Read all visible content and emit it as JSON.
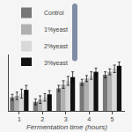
{
  "chart_data": {
    "type": "bar",
    "x_label": "Fermentation time (hours)",
    "x": [
      1,
      2,
      3,
      4,
      5
    ],
    "xlim": [
      0.55,
      5.55
    ],
    "xticks": [
      1,
      2,
      3,
      4,
      5
    ],
    "ylim": [
      0.2,
      0.95
    ],
    "tick_labels": "x",
    "grid": false,
    "legend": "upper left",
    "series": [
      {
        "name": "Control",
        "color": "#777777",
        "values": [
          0.38,
          0.32,
          0.5,
          0.58,
          0.68
        ],
        "errors": [
          0.04,
          0.04,
          0.04,
          0.04,
          0.04
        ]
      },
      {
        "name": "1%yeast",
        "color": "#b0b0b0",
        "values": [
          0.4,
          0.35,
          0.55,
          0.63,
          0.72
        ],
        "errors": [
          0.05,
          0.05,
          0.05,
          0.04,
          0.04
        ]
      },
      {
        "name": "2%yeast",
        "color": "#d8d8d8",
        "values": [
          0.43,
          0.38,
          0.6,
          0.67,
          0.76
        ],
        "errors": [
          0.06,
          0.05,
          0.06,
          0.05,
          0.05
        ]
      },
      {
        "name": "3%yeast",
        "color": "#111111",
        "values": [
          0.48,
          0.42,
          0.65,
          0.72,
          0.8
        ],
        "errors": [
          0.06,
          0.05,
          0.07,
          0.05,
          0.05
        ]
      }
    ]
  }
}
